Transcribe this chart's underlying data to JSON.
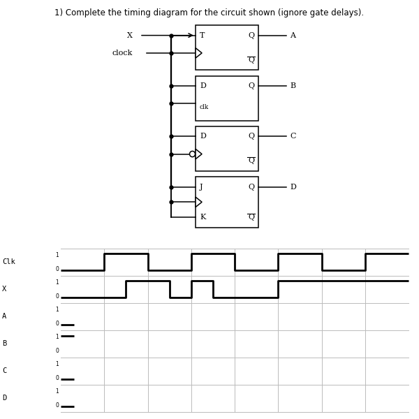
{
  "title": "1) Complete the timing diagram for the circuit shown (ignore gate delays).",
  "title_fontsize": 8.5,
  "bg_color": "#ffffff",
  "grid_color": "#bbbbbb",
  "signal_color": "#000000",
  "signal_lw": 2.0,
  "row_labels": [
    "Clk",
    "X",
    "A",
    "B",
    "C",
    "D"
  ],
  "clk_times": [
    0,
    1,
    1,
    2,
    2,
    3,
    3,
    4,
    4,
    5,
    5,
    6,
    6,
    7,
    7,
    8
  ],
  "clk_values": [
    0,
    0,
    1,
    1,
    0,
    0,
    1,
    1,
    0,
    0,
    1,
    1,
    0,
    0,
    1,
    1
  ],
  "x_times": [
    0,
    1.5,
    1.5,
    2.5,
    2.5,
    3.0,
    3.0,
    3.5,
    3.5,
    5.0,
    5.0,
    8.0
  ],
  "x_values": [
    0,
    0,
    1,
    1,
    0,
    0,
    1,
    1,
    0,
    0,
    1,
    1
  ],
  "a_times": [
    0,
    0.3
  ],
  "a_values": [
    0,
    0
  ],
  "b_times": [
    0,
    0.3
  ],
  "b_values": [
    1,
    1
  ],
  "c_times": [
    0,
    0.3
  ],
  "c_values": [
    0,
    0
  ],
  "d_times": [
    0,
    0.3
  ],
  "d_values": [
    0,
    0
  ]
}
